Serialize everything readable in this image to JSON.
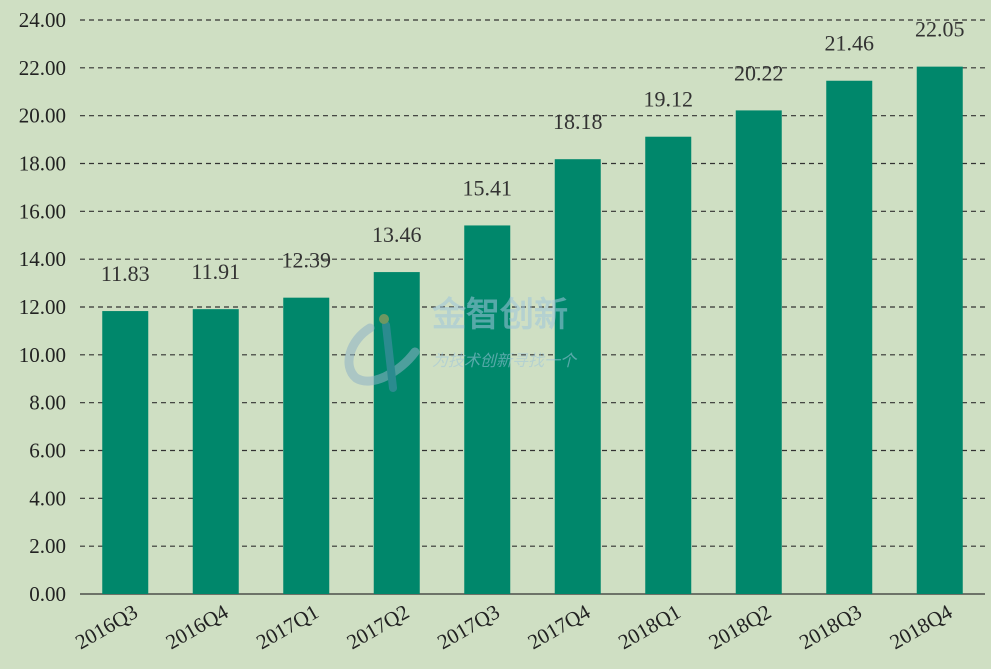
{
  "chart_data": {
    "type": "bar",
    "categories": [
      "2016Q3",
      "2016Q4",
      "2017Q1",
      "2017Q2",
      "2017Q3",
      "2017Q4",
      "2018Q1",
      "2018Q2",
      "2018Q3",
      "2018Q4"
    ],
    "values": [
      11.83,
      11.91,
      12.39,
      13.46,
      15.41,
      18.18,
      19.12,
      20.22,
      21.46,
      22.05
    ],
    "ylim": [
      0,
      24
    ],
    "yticks": [
      "0.00",
      "2.00",
      "4.00",
      "6.00",
      "8.00",
      "10.00",
      "12.00",
      "14.00",
      "16.00",
      "18.00",
      "20.00",
      "22.00",
      "24.00"
    ],
    "grid": true,
    "title": "",
    "xlabel": "",
    "ylabel": ""
  },
  "colors": {
    "background": "#cfdfc3",
    "bar": "#00876b",
    "grid": "#333333"
  },
  "watermark": {
    "title": "金智创新",
    "slogan": "为技术创新寻找一个"
  }
}
